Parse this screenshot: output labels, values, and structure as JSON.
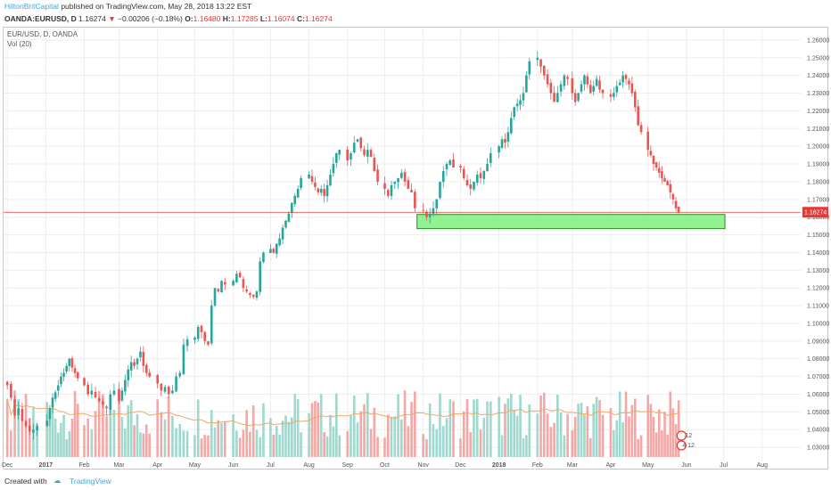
{
  "header": {
    "author": "HiltonBritCapital",
    "published": "published on TradingView.com, May 28, 2018 13:22 EST",
    "symbol": "OANDA:EURUSD, D",
    "last": "1.16274",
    "change_arrow": "▼",
    "change": "−0.00206 (−0.18%)",
    "o_label": "O:",
    "o_value": "1.16480",
    "h_label": "H:",
    "h_value": "1.17285",
    "l_label": "L:",
    "l_value": "1.16074",
    "c_label": "C:",
    "c_value": "1.16274"
  },
  "legend": {
    "symbol": "EUR/USD, D, OANDA",
    "volume": "Vol (20)"
  },
  "footer": {
    "created_with": "Created with",
    "brand": "TradingView"
  },
  "colors": {
    "up": "#26a69a",
    "down": "#ef5350",
    "vol_up": "#9fd8cd",
    "vol_down": "#f5a7a5",
    "ma": "#f0a868",
    "zone_fill": "#7ef07e",
    "zone_border": "#2c8a2c",
    "price_line": "#e53935",
    "price_label_bg": "#e53935",
    "grid": "#eeeeee",
    "brand": "#3ea6d8"
  },
  "badges": {
    "top": "12",
    "bottom": "4 12"
  },
  "chart_data": {
    "type": "candlestick",
    "title": "EUR/USD, D, OANDA",
    "last_price": 1.16274,
    "x_ticks": [
      "Dec",
      "2017",
      "Feb",
      "Mar",
      "Apr",
      "May",
      "Jun",
      "Jul",
      "Aug",
      "Sep",
      "Oct",
      "Nov",
      "Dec",
      "2018",
      "Feb",
      "Mar",
      "Apr",
      "May",
      "Jun",
      "Jul",
      "Aug"
    ],
    "y_ticks": [
      "1.26000",
      "1.25000",
      "1.24000",
      "1.23000",
      "1.22000",
      "1.21000",
      "1.20000",
      "1.19000",
      "1.18000",
      "1.17000",
      "1.16000",
      "1.15000",
      "1.14000",
      "1.13000",
      "1.12000",
      "1.11000",
      "1.10000",
      "1.09000",
      "1.08000",
      "1.07000",
      "1.06000",
      "1.05000",
      "1.04000",
      "1.03000"
    ],
    "y_range": [
      1.0225,
      1.2665
    ],
    "support_zone": {
      "low": 1.1535,
      "high": 1.1615,
      "from": "2017-10-27",
      "to": "2018-07-02"
    },
    "volume": {
      "label": "Vol (20)",
      "ma_length": 20
    },
    "daily_closes": [
      {
        "start": "2016-12-01",
        "values": [
          1.065,
          1.058,
          1.048,
          1.052,
          1.045,
          1.042,
          1.039,
          1.04,
          1.042
        ]
      },
      {
        "start": "2017-01-02",
        "values": [
          1.045,
          1.052,
          1.058,
          1.061,
          1.065,
          1.07,
          1.072,
          1.076,
          1.08,
          1.075,
          1.072,
          1.069
        ]
      },
      {
        "start": "2017-02-01",
        "values": [
          1.065,
          1.06,
          1.062,
          1.058,
          1.056,
          1.054,
          1.052,
          1.06,
          1.062
        ]
      },
      {
        "start": "2017-03-01",
        "values": [
          1.056,
          1.062,
          1.068,
          1.074,
          1.078,
          1.076,
          1.08,
          1.084,
          1.076,
          1.072,
          1.07
        ]
      },
      {
        "start": "2017-04-01",
        "values": [
          1.066,
          1.062,
          1.064,
          1.06,
          1.062,
          1.07,
          1.072,
          1.088,
          1.091
        ]
      },
      {
        "start": "2017-05-01",
        "values": [
          1.092,
          1.098,
          1.095,
          1.09,
          1.088,
          1.11,
          1.12,
          1.118,
          1.124,
          1.122
        ]
      },
      {
        "start": "2017-06-01",
        "values": [
          1.124,
          1.128,
          1.126,
          1.12,
          1.118,
          1.116,
          1.115,
          1.118,
          1.135,
          1.14
        ]
      },
      {
        "start": "2017-07-01",
        "values": [
          1.142,
          1.14,
          1.145,
          1.148,
          1.154,
          1.158,
          1.162,
          1.168,
          1.172,
          1.176,
          1.182
        ]
      },
      {
        "start": "2017-08-01",
        "values": [
          1.184,
          1.18,
          1.177,
          1.174,
          1.176,
          1.172,
          1.178,
          1.184,
          1.19,
          1.196,
          1.198
        ]
      },
      {
        "start": "2017-09-01",
        "values": [
          1.192,
          1.196,
          1.202,
          1.204,
          1.199,
          1.195,
          1.198,
          1.194,
          1.186,
          1.18
        ]
      },
      {
        "start": "2017-10-01",
        "values": [
          1.176,
          1.172,
          1.178,
          1.18,
          1.182,
          1.185,
          1.18,
          1.176,
          1.174,
          1.165
        ]
      },
      {
        "start": "2017-11-01",
        "values": [
          1.164,
          1.16,
          1.162,
          1.165,
          1.17,
          1.18,
          1.186,
          1.19,
          1.192,
          1.188
        ]
      },
      {
        "start": "2017-12-01",
        "values": [
          1.188,
          1.182,
          1.178,
          1.176,
          1.18,
          1.184,
          1.182,
          1.186,
          1.19,
          1.196
        ]
      },
      {
        "start": "2018-01-01",
        "values": [
          1.2,
          1.204,
          1.202,
          1.208,
          1.216,
          1.222,
          1.224,
          1.226,
          1.23,
          1.24,
          1.248
        ]
      },
      {
        "start": "2018-02-01",
        "values": [
          1.25,
          1.245,
          1.24,
          1.235,
          1.23,
          1.225,
          1.23,
          1.235,
          1.24,
          1.238
        ]
      },
      {
        "start": "2018-03-01",
        "values": [
          1.23,
          1.225,
          1.23,
          1.235,
          1.24,
          1.235,
          1.23,
          1.234,
          1.238,
          1.232,
          1.23
        ]
      },
      {
        "start": "2018-04-01",
        "values": [
          1.228,
          1.23,
          1.234,
          1.236,
          1.24,
          1.238,
          1.235,
          1.23,
          1.222,
          1.212,
          1.208
        ]
      },
      {
        "start": "2018-05-01",
        "values": [
          1.198,
          1.195,
          1.19,
          1.188,
          1.185,
          1.182,
          1.18,
          1.178,
          1.174,
          1.17,
          1.165,
          1.1627
        ]
      }
    ]
  }
}
